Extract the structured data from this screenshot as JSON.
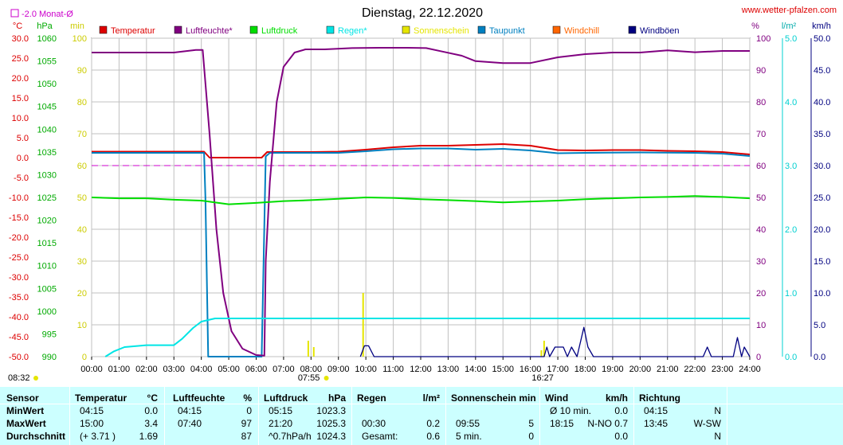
{
  "title": "Dienstag, 22.12.2020",
  "website": "www.wetter-pfalzen.com",
  "monthly_avg_label": "-2.0 Monat-Ø",
  "axis_units": {
    "temp": "°C",
    "pressure": "hPa",
    "min": "min",
    "percent": "%",
    "rain": "l/m²",
    "wind": "km/h"
  },
  "legend": [
    {
      "label": "Temperatur",
      "color": "#dd0000"
    },
    {
      "label": "Luftfeuchte*",
      "color": "#800080"
    },
    {
      "label": "Luftdruck",
      "color": "#00dd00"
    },
    {
      "label": "Regen*",
      "color": "#00e5e5"
    },
    {
      "label": "Sonnenschein",
      "color": "#e5e500"
    },
    {
      "label": "Taupunkt",
      "color": "#0080c0"
    },
    {
      "label": "Windchill",
      "color": "#ff6600"
    },
    {
      "label": "Windböen",
      "color": "#000080"
    }
  ],
  "sunrise": "08:32",
  "sunrise_line": "07:55",
  "sunset_line": "16:27",
  "chart_data": {
    "type": "line",
    "title": "Dienstag, 22.12.2020",
    "x_ticks": [
      "00:00",
      "01:00",
      "02:00",
      "03:00",
      "04:00",
      "05:00",
      "06:00",
      "07:00",
      "08:00",
      "09:00",
      "10:00",
      "11:00",
      "12:00",
      "13:00",
      "14:00",
      "15:00",
      "16:00",
      "17:00",
      "18:00",
      "19:00",
      "20:00",
      "21:00",
      "22:00",
      "23:00",
      "24:00"
    ],
    "axes": {
      "temp_c": {
        "ticks": [
          "30.0",
          "25.0",
          "20.0",
          "15.0",
          "10.0",
          "5.0",
          "0.0",
          "-5.0",
          "-10.0",
          "-15.0",
          "-20.0",
          "-25.0",
          "-30.0",
          "-35.0",
          "-40.0",
          "-45.0",
          "-50.0"
        ],
        "range": [
          -50,
          30
        ]
      },
      "pressure_hpa": {
        "ticks": [
          "1060",
          "1055",
          "1050",
          "1045",
          "1040",
          "1035",
          "1030",
          "1025",
          "1020",
          "1015",
          "1010",
          "1005",
          "1000",
          "995",
          "990"
        ],
        "range": [
          990,
          1060
        ]
      },
      "minutes": {
        "ticks": [
          "100",
          "90",
          "80",
          "70",
          "60",
          "50",
          "40",
          "30",
          "20",
          "10",
          "0"
        ],
        "range": [
          0,
          100
        ]
      },
      "percent": {
        "ticks": [
          "100",
          "90",
          "80",
          "70",
          "60",
          "50",
          "40",
          "30",
          "20",
          "10",
          "0"
        ],
        "range": [
          0,
          100
        ]
      },
      "rain_lm2": {
        "ticks": [
          "5.0",
          "4.0",
          "3.0",
          "2.0",
          "1.0",
          "0.0"
        ],
        "range": [
          0,
          5
        ]
      },
      "wind_kmh": {
        "ticks": [
          "50.0",
          "45.0",
          "40.0",
          "35.0",
          "30.0",
          "25.0",
          "20.0",
          "15.0",
          "10.0",
          "5.0",
          "0.0"
        ],
        "range": [
          0,
          50
        ]
      }
    },
    "monthly_avg_temp": -2.0,
    "series": [
      {
        "name": "Temperatur",
        "axis": "temp_c",
        "color": "#dd0000",
        "points": [
          [
            0,
            1.5
          ],
          [
            1,
            1.5
          ],
          [
            2,
            1.5
          ],
          [
            3,
            1.5
          ],
          [
            4.1,
            1.5
          ],
          [
            4.3,
            0.0
          ],
          [
            5,
            0.0
          ],
          [
            6.2,
            0.0
          ],
          [
            6.4,
            1.4
          ],
          [
            8,
            1.4
          ],
          [
            9,
            1.5
          ],
          [
            10,
            2.0
          ],
          [
            11,
            2.6
          ],
          [
            12,
            3.0
          ],
          [
            13,
            3.0
          ],
          [
            14,
            3.2
          ],
          [
            15,
            3.4
          ],
          [
            16,
            3.0
          ],
          [
            17,
            1.9
          ],
          [
            18,
            1.8
          ],
          [
            19,
            1.9
          ],
          [
            20,
            1.9
          ],
          [
            21,
            1.7
          ],
          [
            22,
            1.6
          ],
          [
            23,
            1.4
          ],
          [
            24,
            0.8
          ]
        ]
      },
      {
        "name": "Taupunkt",
        "axis": "temp_c",
        "color": "#0080c0",
        "points": [
          [
            0,
            1.2
          ],
          [
            4.1,
            1.2
          ],
          [
            4.15,
            -10
          ],
          [
            4.25,
            -50
          ],
          [
            6.2,
            -50
          ],
          [
            6.35,
            0.3
          ],
          [
            6.5,
            1.2
          ],
          [
            9,
            1.2
          ],
          [
            10,
            1.6
          ],
          [
            11,
            2.1
          ],
          [
            12,
            2.3
          ],
          [
            13,
            2.3
          ],
          [
            14,
            2.0
          ],
          [
            15,
            2.2
          ],
          [
            16,
            1.8
          ],
          [
            17,
            1.1
          ],
          [
            18,
            1.2
          ],
          [
            20,
            1.3
          ],
          [
            22,
            1.2
          ],
          [
            23,
            1.0
          ],
          [
            24,
            0.4
          ]
        ]
      },
      {
        "name": "Luftfeuchte*",
        "axis": "percent",
        "color": "#800080",
        "points": [
          [
            0,
            95.5
          ],
          [
            3,
            95.5
          ],
          [
            3.8,
            96.3
          ],
          [
            4.05,
            96.3
          ],
          [
            4.3,
            70
          ],
          [
            4.55,
            40
          ],
          [
            4.8,
            20
          ],
          [
            5.1,
            8
          ],
          [
            5.5,
            2.5
          ],
          [
            6.0,
            0.5
          ],
          [
            6.3,
            0.3
          ],
          [
            6.35,
            30
          ],
          [
            6.5,
            55
          ],
          [
            6.75,
            80
          ],
          [
            7.0,
            91
          ],
          [
            7.4,
            95.5
          ],
          [
            7.8,
            96.5
          ],
          [
            8.5,
            96.5
          ],
          [
            9.5,
            96.9
          ],
          [
            10.5,
            97.0
          ],
          [
            11.5,
            97.0
          ],
          [
            12.2,
            96.9
          ],
          [
            12.8,
            95.8
          ],
          [
            13.5,
            94.5
          ],
          [
            14,
            92.8
          ],
          [
            15,
            92.2
          ],
          [
            16,
            92.2
          ],
          [
            17,
            94.0
          ],
          [
            18,
            95.0
          ],
          [
            19,
            95.5
          ],
          [
            20,
            95.5
          ],
          [
            21,
            96.2
          ],
          [
            22,
            95.6
          ],
          [
            23,
            96.0
          ],
          [
            24,
            96.0
          ]
        ]
      },
      {
        "name": "Luftdruck",
        "axis": "pressure_hpa",
        "color": "#00dd00",
        "points": [
          [
            0,
            1025.0
          ],
          [
            1,
            1024.8
          ],
          [
            2,
            1024.8
          ],
          [
            3,
            1024.5
          ],
          [
            4,
            1024.3
          ],
          [
            5,
            1023.5
          ],
          [
            6,
            1023.8
          ],
          [
            7,
            1024.2
          ],
          [
            8,
            1024.4
          ],
          [
            9,
            1024.7
          ],
          [
            10,
            1025.0
          ],
          [
            11,
            1024.9
          ],
          [
            12,
            1024.6
          ],
          [
            13,
            1024.4
          ],
          [
            14,
            1024.2
          ],
          [
            15,
            1023.9
          ],
          [
            16,
            1024.1
          ],
          [
            17,
            1024.3
          ],
          [
            18,
            1024.6
          ],
          [
            19,
            1024.8
          ],
          [
            20,
            1025.0
          ],
          [
            21,
            1025.1
          ],
          [
            22,
            1025.3
          ],
          [
            23,
            1025.1
          ],
          [
            24,
            1024.8
          ]
        ]
      },
      {
        "name": "Regen*",
        "axis": "rain_lm2",
        "color": "#00e5e5",
        "points": [
          [
            0.5,
            0.0
          ],
          [
            0.8,
            0.08
          ],
          [
            1.2,
            0.15
          ],
          [
            2,
            0.18
          ],
          [
            3.0,
            0.18
          ],
          [
            3.3,
            0.28
          ],
          [
            3.7,
            0.45
          ],
          [
            4.0,
            0.55
          ],
          [
            4.5,
            0.6
          ],
          [
            5,
            0.6
          ],
          [
            24,
            0.6
          ]
        ]
      },
      {
        "name": "Windböen",
        "axis": "wind_kmh",
        "color": "#000080",
        "points": [
          [
            9.8,
            0
          ],
          [
            9.95,
            1.7
          ],
          [
            10.1,
            1.7
          ],
          [
            10.3,
            0
          ],
          [
            16.5,
            0
          ],
          [
            16.6,
            1.5
          ],
          [
            16.7,
            0
          ],
          [
            16.9,
            1.5
          ],
          [
            17.2,
            1.5
          ],
          [
            17.35,
            0
          ],
          [
            17.5,
            1.5
          ],
          [
            17.7,
            0
          ],
          [
            17.95,
            4.6
          ],
          [
            18.1,
            1.5
          ],
          [
            18.3,
            0
          ],
          [
            22.3,
            0
          ],
          [
            22.45,
            1.5
          ],
          [
            22.6,
            0
          ],
          [
            23.4,
            0
          ],
          [
            23.55,
            3.0
          ],
          [
            23.7,
            0
          ],
          [
            23.8,
            1.5
          ],
          [
            24,
            0
          ]
        ]
      }
    ],
    "sunshine_bars": [
      [
        7.9,
        5
      ],
      [
        8.1,
        3
      ],
      [
        9.9,
        20
      ],
      [
        16.4,
        2
      ],
      [
        16.5,
        5
      ]
    ]
  },
  "summary": {
    "columns": [
      {
        "header": "Sensor",
        "rows": [
          "MinWert",
          "MaxWert",
          "Durchschnitt"
        ]
      },
      {
        "header": "Temperatur",
        "unit": "°C",
        "times": [
          "04:15",
          "15:00",
          "(+ 3.71 )"
        ],
        "values": [
          "0.0",
          "3.4",
          "1.69"
        ]
      },
      {
        "header": "Luftfeuchte",
        "unit": "%",
        "times": [
          "04:15",
          "07:40",
          ""
        ],
        "values": [
          "0",
          "97",
          "87"
        ]
      },
      {
        "header": "Luftdruck",
        "unit": "hPa",
        "times": [
          "05:15",
          "21:20",
          "^0.7hPa/h"
        ],
        "values": [
          "1023.3",
          "1025.3",
          "1024.3"
        ]
      },
      {
        "header": "Regen",
        "unit": "l/m²",
        "times": [
          "",
          "00:30",
          "Gesamt:"
        ],
        "values": [
          "",
          "0.2",
          "0.6"
        ]
      },
      {
        "header": "Sonnenschein min",
        "unit": "",
        "times": [
          "",
          "09:55",
          "5 min."
        ],
        "values": [
          "",
          "5",
          "0"
        ]
      },
      {
        "header": "Wind",
        "unit": "km/h",
        "times": [
          "Ø 10 min.",
          "18:15",
          ""
        ],
        "values": [
          "0.0",
          "N-NO 0.7",
          "0.0"
        ]
      },
      {
        "header": "Richtung",
        "unit": "",
        "times": [
          "04:15",
          "13:45",
          ""
        ],
        "values": [
          "N",
          "W-SW",
          "N"
        ]
      }
    ]
  }
}
